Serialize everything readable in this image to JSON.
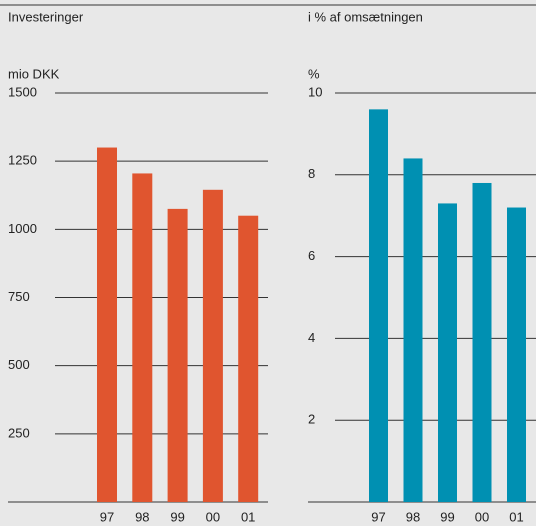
{
  "chart_data": [
    {
      "type": "bar",
      "title": "Investeringer",
      "y_label": "mio DKK",
      "categories": [
        "97",
        "98",
        "99",
        "00",
        "01"
      ],
      "values": [
        1300,
        1205,
        1075,
        1145,
        1050
      ],
      "color": "#e0552f",
      "ylim": [
        0,
        1500
      ],
      "yticks": [
        250,
        500,
        750,
        1000,
        1250,
        1500
      ],
      "grid": true
    },
    {
      "type": "bar",
      "title": "i % af omsætningen",
      "y_label": "%",
      "categories": [
        "97",
        "98",
        "99",
        "00",
        "01"
      ],
      "values": [
        9.6,
        8.4,
        7.3,
        7.8,
        7.2
      ],
      "color": "#0090b2",
      "ylim": [
        0,
        10
      ],
      "yticks": [
        2,
        4,
        6,
        8,
        10
      ],
      "grid": true
    }
  ]
}
